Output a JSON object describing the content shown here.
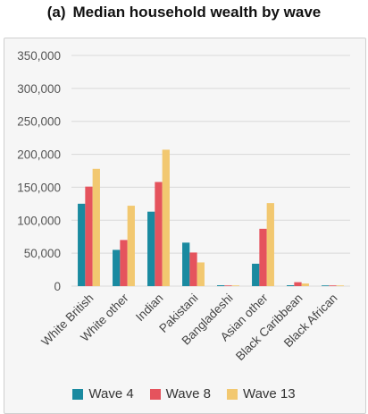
{
  "title_prefix": "(a)",
  "title_text": "Median household wealth by wave",
  "colors": {
    "series": [
      "#1a8aa0",
      "#e5535d",
      "#f2c870"
    ],
    "grid": "#d9d9d9",
    "panel_bg": "#f6f6f6"
  },
  "chart_data": {
    "type": "bar",
    "title": "Median household wealth by wave",
    "xlabel": "",
    "ylabel": "",
    "ylim": [
      0,
      350000
    ],
    "yticks": [
      0,
      50000,
      100000,
      150000,
      200000,
      250000,
      300000,
      350000
    ],
    "ytick_labels": [
      "0",
      "50,000",
      "100,000",
      "150,000",
      "200,000",
      "250,000",
      "300,000",
      "350,000"
    ],
    "grid": true,
    "legend": "bottom",
    "categories": [
      "White British",
      "White other",
      "Indian",
      "Pakistani",
      "Bangladeshi",
      "Asian other",
      "Black Caribbean",
      "Black African"
    ],
    "series": [
      {
        "name": "Wave 4",
        "values": [
          125000,
          55000,
          113000,
          66000,
          500,
          34000,
          1000,
          0
        ]
      },
      {
        "name": "Wave 8",
        "values": [
          151000,
          70000,
          158000,
          51000,
          0,
          87000,
          6000,
          0
        ]
      },
      {
        "name": "Wave 13",
        "values": [
          178000,
          122000,
          207000,
          36000,
          0,
          126000,
          4000,
          0
        ]
      }
    ]
  }
}
